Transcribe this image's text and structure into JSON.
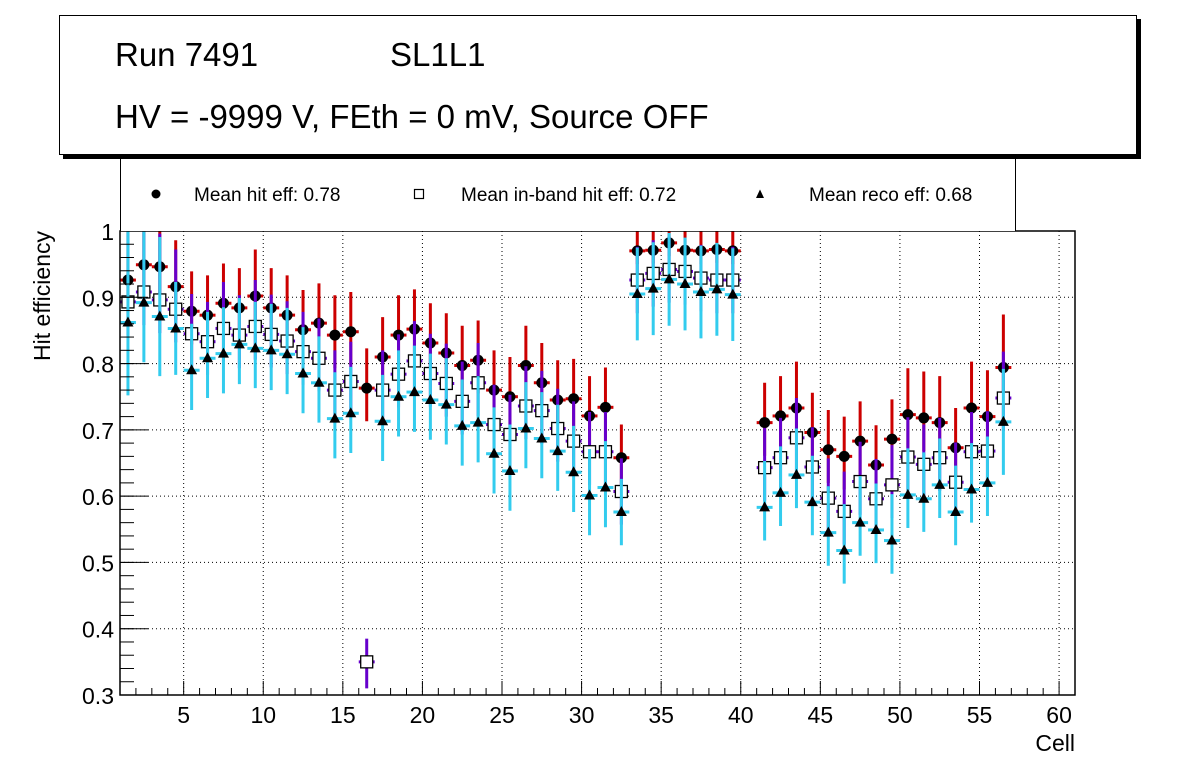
{
  "title": {
    "line1_run": "Run 7491",
    "line1_layer": "SL1L1",
    "line2": "HV = -9999 V, FEth = 0 mV, Source OFF"
  },
  "legend": {
    "items": [
      {
        "marker": "filled-circle",
        "label": "Mean hit  eff: 0.78"
      },
      {
        "marker": "open-square",
        "label": "Mean in-band hit eff: 0.72"
      },
      {
        "marker": "filled-triangle",
        "label": "Mean reco eff: 0.68"
      }
    ]
  },
  "colors": {
    "hit_error": "#cc0000",
    "inband_error": "#6600cc",
    "reco_error": "#33ccee",
    "marker": "#000000",
    "grid": "#000000"
  },
  "chart_data": {
    "type": "scatter",
    "title": "Run 7491 SL1L1 — HV = -9999 V, FEth = 0 mV, Source OFF",
    "xlabel": "Cell",
    "ylabel": "Hit efficiency",
    "xlim": [
      1,
      61
    ],
    "ylim": [
      0.3,
      1.0
    ],
    "xticks": [
      5,
      10,
      15,
      20,
      25,
      30,
      35,
      40,
      45,
      50,
      55,
      60
    ],
    "yticks": [
      0.3,
      0.4,
      0.5,
      0.6,
      0.7,
      0.8,
      0.9,
      1.0
    ],
    "ytick_labels": [
      "0.3",
      "0.4",
      "0.5",
      "0.6",
      "0.7",
      "0.8",
      "0.9",
      "1"
    ],
    "grid": true,
    "legend_position": "top",
    "series": [
      {
        "name": "Mean hit  eff: 0.78",
        "marker": "filled-circle",
        "error_color": "hit_error",
        "x": [
          1.5,
          2.5,
          3.5,
          4.5,
          5.5,
          6.5,
          7.5,
          8.5,
          9.5,
          10.5,
          11.5,
          12.5,
          13.5,
          14.5,
          15.5,
          16.5,
          17.5,
          18.5,
          19.5,
          20.5,
          21.5,
          22.5,
          23.5,
          24.5,
          25.5,
          26.5,
          27.5,
          28.5,
          29.5,
          30.5,
          31.5,
          32.5,
          33.5,
          34.5,
          35.5,
          36.5,
          37.5,
          38.5,
          39.5,
          41.5,
          42.5,
          43.5,
          44.5,
          45.5,
          46.5,
          47.5,
          48.5,
          49.5,
          50.5,
          51.5,
          52.5,
          53.5,
          54.5,
          55.5,
          56.5
        ],
        "y": [
          0.926,
          0.949,
          0.946,
          0.916,
          0.879,
          0.873,
          0.891,
          0.884,
          0.902,
          0.884,
          0.873,
          0.851,
          0.861,
          0.843,
          0.848,
          0.763,
          0.81,
          0.843,
          0.852,
          0.831,
          0.816,
          0.797,
          0.805,
          0.76,
          0.75,
          0.797,
          0.771,
          0.745,
          0.747,
          0.721,
          0.734,
          0.658,
          0.97,
          0.971,
          0.982,
          0.971,
          0.97,
          0.972,
          0.97,
          0.711,
          0.721,
          0.733,
          0.696,
          0.67,
          0.66,
          0.683,
          0.647,
          0.686,
          0.723,
          0.718,
          0.711,
          0.673,
          0.733,
          0.72,
          0.794
        ],
        "err_up": [
          0.08,
          0.07,
          0.07,
          0.07,
          0.06,
          0.06,
          0.06,
          0.06,
          0.07,
          0.06,
          0.06,
          0.06,
          0.06,
          0.06,
          0.06,
          0.06,
          0.06,
          0.06,
          0.06,
          0.06,
          0.06,
          0.06,
          0.06,
          0.06,
          0.06,
          0.06,
          0.06,
          0.06,
          0.06,
          0.06,
          0.06,
          0.05,
          0.03,
          0.03,
          0.02,
          0.03,
          0.03,
          0.03,
          0.03,
          0.06,
          0.06,
          0.07,
          0.06,
          0.06,
          0.06,
          0.06,
          0.06,
          0.06,
          0.07,
          0.07,
          0.07,
          0.06,
          0.07,
          0.07,
          0.08
        ],
        "err_down": [
          0.05,
          0.05,
          0.05,
          0.05,
          0.05,
          0.05,
          0.05,
          0.05,
          0.05,
          0.05,
          0.05,
          0.05,
          0.05,
          0.05,
          0.05,
          0.05,
          0.05,
          0.05,
          0.05,
          0.05,
          0.05,
          0.05,
          0.05,
          0.05,
          0.05,
          0.05,
          0.05,
          0.05,
          0.05,
          0.05,
          0.05,
          0.05,
          0.02,
          0.02,
          0.02,
          0.02,
          0.02,
          0.02,
          0.02,
          0.05,
          0.05,
          0.05,
          0.05,
          0.05,
          0.05,
          0.05,
          0.05,
          0.05,
          0.05,
          0.05,
          0.05,
          0.05,
          0.05,
          0.05,
          0.05
        ]
      },
      {
        "name": "Mean in-band hit eff: 0.72",
        "marker": "open-square",
        "error_color": "inband_error",
        "x": [
          1.5,
          2.5,
          3.5,
          4.5,
          5.5,
          6.5,
          7.5,
          8.5,
          9.5,
          10.5,
          11.5,
          12.5,
          13.5,
          14.5,
          15.5,
          16.5,
          17.5,
          18.5,
          19.5,
          20.5,
          21.5,
          22.5,
          23.5,
          24.5,
          25.5,
          26.5,
          27.5,
          28.5,
          29.5,
          30.5,
          31.5,
          32.5,
          33.5,
          34.5,
          35.5,
          36.5,
          37.5,
          38.5,
          39.5,
          41.5,
          42.5,
          43.5,
          44.5,
          45.5,
          46.5,
          47.5,
          48.5,
          49.5,
          50.5,
          51.5,
          52.5,
          53.5,
          54.5,
          55.5,
          56.5
        ],
        "y": [
          0.893,
          0.908,
          0.896,
          0.882,
          0.845,
          0.833,
          0.853,
          0.843,
          0.856,
          0.844,
          0.834,
          0.818,
          0.808,
          0.76,
          0.773,
          0.35,
          0.76,
          0.784,
          0.804,
          0.785,
          0.77,
          0.743,
          0.771,
          0.708,
          0.693,
          0.736,
          0.729,
          0.702,
          0.683,
          0.667,
          0.667,
          0.607,
          0.926,
          0.936,
          0.942,
          0.939,
          0.929,
          0.926,
          0.926,
          0.643,
          0.658,
          0.688,
          0.644,
          0.597,
          0.577,
          0.622,
          0.596,
          0.617,
          0.659,
          0.648,
          0.658,
          0.621,
          0.667,
          0.668,
          0.748
        ],
        "err_up": [
          0.11,
          0.09,
          0.1,
          0.09,
          0.06,
          0.06,
          0.07,
          0.06,
          0.07,
          0.06,
          0.06,
          0.06,
          0.06,
          0.06,
          0.06,
          0.035,
          0.06,
          0.06,
          0.06,
          0.06,
          0.06,
          0.06,
          0.06,
          0.06,
          0.06,
          0.06,
          0.06,
          0.06,
          0.06,
          0.06,
          0.06,
          0.05,
          0.05,
          0.05,
          0.05,
          0.05,
          0.05,
          0.05,
          0.05,
          0.06,
          0.06,
          0.06,
          0.06,
          0.06,
          0.06,
          0.06,
          0.06,
          0.06,
          0.06,
          0.06,
          0.06,
          0.06,
          0.06,
          0.06,
          0.07
        ],
        "err_down": [
          0.05,
          0.05,
          0.05,
          0.05,
          0.05,
          0.05,
          0.05,
          0.05,
          0.05,
          0.05,
          0.05,
          0.05,
          0.05,
          0.05,
          0.05,
          0.04,
          0.05,
          0.05,
          0.05,
          0.05,
          0.05,
          0.05,
          0.05,
          0.05,
          0.05,
          0.05,
          0.05,
          0.05,
          0.05,
          0.05,
          0.05,
          0.05,
          0.05,
          0.05,
          0.05,
          0.05,
          0.05,
          0.05,
          0.05,
          0.05,
          0.05,
          0.05,
          0.05,
          0.05,
          0.05,
          0.05,
          0.05,
          0.05,
          0.05,
          0.05,
          0.05,
          0.05,
          0.05,
          0.05,
          0.05
        ]
      },
      {
        "name": "Mean reco eff: 0.68",
        "marker": "filled-triangle",
        "error_color": "reco_error",
        "x": [
          1.5,
          2.5,
          3.5,
          4.5,
          5.5,
          6.5,
          7.5,
          8.5,
          9.5,
          10.5,
          11.5,
          12.5,
          13.5,
          14.5,
          15.5,
          17.5,
          18.5,
          19.5,
          20.5,
          21.5,
          22.5,
          23.5,
          24.5,
          25.5,
          26.5,
          27.5,
          28.5,
          29.5,
          30.5,
          31.5,
          32.5,
          33.5,
          34.5,
          35.5,
          36.5,
          37.5,
          38.5,
          39.5,
          41.5,
          42.5,
          43.5,
          44.5,
          45.5,
          46.5,
          47.5,
          48.5,
          49.5,
          50.5,
          51.5,
          52.5,
          53.5,
          54.5,
          55.5,
          56.5
        ],
        "y": [
          0.862,
          0.892,
          0.871,
          0.853,
          0.79,
          0.808,
          0.815,
          0.829,
          0.823,
          0.82,
          0.814,
          0.785,
          0.771,
          0.717,
          0.725,
          0.713,
          0.75,
          0.757,
          0.745,
          0.738,
          0.706,
          0.711,
          0.664,
          0.638,
          0.702,
          0.687,
          0.668,
          0.636,
          0.601,
          0.613,
          0.576,
          0.905,
          0.913,
          0.927,
          0.92,
          0.908,
          0.912,
          0.904,
          0.583,
          0.605,
          0.632,
          0.591,
          0.545,
          0.518,
          0.56,
          0.549,
          0.533,
          0.602,
          0.596,
          0.617,
          0.576,
          0.61,
          0.62,
          0.712
        ],
        "err_up": [
          0.14,
          0.11,
          0.12,
          0.07,
          0.07,
          0.07,
          0.07,
          0.07,
          0.07,
          0.07,
          0.07,
          0.07,
          0.07,
          0.07,
          0.07,
          0.07,
          0.07,
          0.07,
          0.07,
          0.07,
          0.07,
          0.07,
          0.07,
          0.07,
          0.07,
          0.07,
          0.07,
          0.07,
          0.07,
          0.07,
          0.05,
          0.07,
          0.07,
          0.07,
          0.07,
          0.07,
          0.07,
          0.07,
          0.07,
          0.07,
          0.07,
          0.07,
          0.07,
          0.07,
          0.07,
          0.07,
          0.07,
          0.07,
          0.07,
          0.07,
          0.07,
          0.07,
          0.07,
          0.08
        ],
        "err_down": [
          0.11,
          0.09,
          0.09,
          0.07,
          0.06,
          0.06,
          0.06,
          0.06,
          0.06,
          0.06,
          0.06,
          0.06,
          0.06,
          0.06,
          0.06,
          0.06,
          0.06,
          0.06,
          0.06,
          0.06,
          0.06,
          0.06,
          0.06,
          0.06,
          0.06,
          0.06,
          0.06,
          0.06,
          0.06,
          0.06,
          0.05,
          0.07,
          0.07,
          0.07,
          0.07,
          0.07,
          0.07,
          0.07,
          0.05,
          0.05,
          0.05,
          0.05,
          0.05,
          0.05,
          0.05,
          0.05,
          0.05,
          0.05,
          0.05,
          0.05,
          0.05,
          0.05,
          0.05,
          0.08
        ]
      }
    ]
  }
}
